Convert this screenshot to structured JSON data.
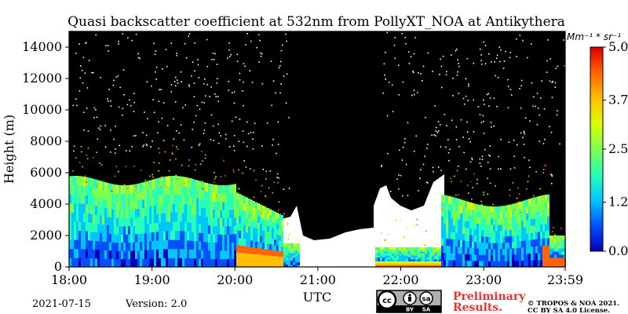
{
  "chart_data": {
    "type": "heatmap",
    "title": "Quasi backscatter coefficient at 532nm from PollyXT_NOA at Antikythera",
    "xlabel": "UTC",
    "ylabel": "Height (m)",
    "x_range": [
      "18:00",
      "23:59"
    ],
    "y_range": [
      0,
      15000
    ],
    "x_ticks": [
      "18:00",
      "19:00",
      "20:00",
      "21:00",
      "22:00",
      "23:00",
      "23:59"
    ],
    "y_ticks": [
      0,
      2000,
      4000,
      6000,
      8000,
      10000,
      12000,
      14000
    ],
    "colorbar": {
      "unit": "Mm⁻¹ * sr⁻¹",
      "ticks": [
        "0.0",
        "1.2",
        "2.5",
        "3.7",
        "5.0"
      ],
      "range": [
        0,
        5
      ],
      "colormap": [
        "#0000b4",
        "#0050ff",
        "#00c8ff",
        "#28ffb4",
        "#7dff50",
        "#dcff00",
        "#ffbe00",
        "#ff6400",
        "#dc0000"
      ]
    },
    "cloud_color": "#000000",
    "no_signal_color": "#ffffff"
  },
  "footer": {
    "date": "2021-07-15",
    "version": "Version: 2.0",
    "preliminary_line1": "Preliminary",
    "preliminary_line2": "Results.",
    "copyright_line1": "© TROPOS & NOA 2021.",
    "copyright_line2": "CC BY SA 4.0 License.",
    "license_badge": [
      "cc",
      "by",
      "sa"
    ],
    "license_badge_text": [
      "BY",
      "SA"
    ]
  }
}
